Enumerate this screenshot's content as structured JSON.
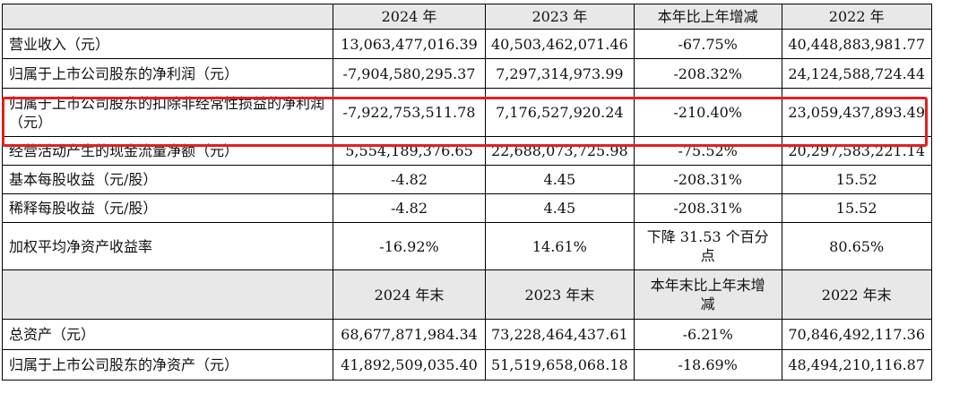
{
  "header": {
    "label": "",
    "col1": "2024 年",
    "col2": "2023 年",
    "col3": "本年比上年增减",
    "col4": "2022 年"
  },
  "rows": [
    {
      "label": "营业收入（元）",
      "v2024": "13,063,477,016.39",
      "v2023": "40,503,462,071.46",
      "change": "-67.75%",
      "v2022": "40,448,883,981.77"
    },
    {
      "label": "归属于上市公司股东的净利润（元）",
      "v2024": "-7,904,580,295.37",
      "v2023": "7,297,314,973.99",
      "change": "-208.32%",
      "v2022": "24,124,588,724.44"
    },
    {
      "label": "归属于上市公司股东的扣除非经常性损益的净利润（元）",
      "v2024": "-7,922,753,511.78",
      "v2023": "7,176,527,920.24",
      "change": "-210.40%",
      "v2022": "23,059,437,893.49"
    },
    {
      "label": "经营活动产生的现金流量净额（元）",
      "v2024": "5,554,189,376.65",
      "v2023": "22,688,073,725.98",
      "change": "-75.52%",
      "v2022": "20,297,583,221.14"
    },
    {
      "label": "基本每股收益（元/股）",
      "v2024": "-4.82",
      "v2023": "4.45",
      "change": "-208.31%",
      "v2022": "15.52"
    },
    {
      "label": "稀释每股收益（元/股）",
      "v2024": "-4.82",
      "v2023": "4.45",
      "change": "-208.31%",
      "v2022": "15.52"
    },
    {
      "label": "加权平均净资产收益率",
      "v2024": "-16.92%",
      "v2023": "14.61%",
      "change": "下降 31.53 个百分点",
      "v2022": "80.65%"
    }
  ],
  "header2": {
    "label": "",
    "col1": "2024 年末",
    "col2": "2023 年末",
    "col3": "本年末比上年末增减",
    "col4": "2022 年末"
  },
  "rows2": [
    {
      "label": "总资产（元）",
      "v2024": "68,677,871,984.34",
      "v2023": "73,228,464,437.61",
      "change": "-6.21%",
      "v2022": "70,846,492,117.36"
    },
    {
      "label": "归属于上市公司股东的净资产（元）",
      "v2024": "41,892,509,035.40",
      "v2023": "51,519,658,068.18",
      "change": "-18.69%",
      "v2022": "48,494,210,116.87"
    }
  ],
  "colors": {
    "highlight": "#e02020",
    "header_bg": "#e8e8e8"
  }
}
